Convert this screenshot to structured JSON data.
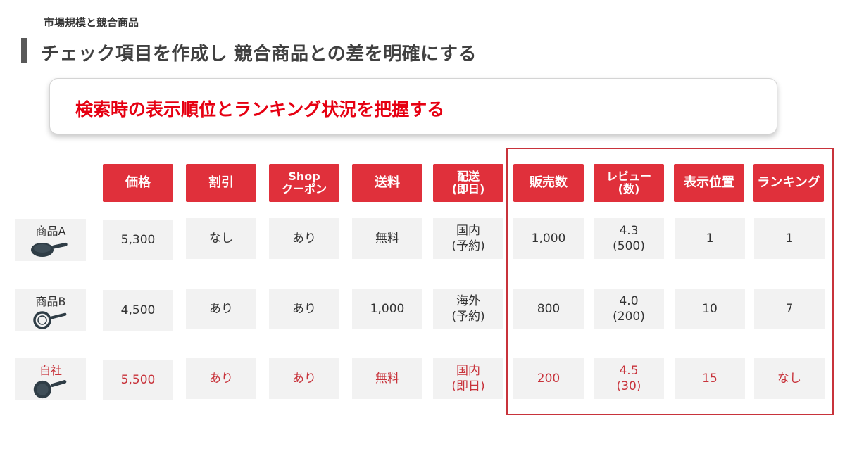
{
  "breadcrumb": "市場規模と競合商品",
  "title": "チェック項目を作成し 競合商品との差を明確にする",
  "callout": "検索時の表示順位とランキング状況を把握する",
  "headers": [
    "価格",
    "割引",
    "Shop\nクーポン",
    "送料",
    "配送\n(即日)",
    "販売数",
    "レビュー\n(数)",
    "表示位置",
    "ランキング"
  ],
  "rows": [
    {
      "label": "商品A",
      "icon": "frying-pan-icon",
      "values": [
        "5,300",
        "なし",
        "あり",
        "無料",
        "国内\n(予約)",
        "1,000",
        "4.3\n(500)",
        "1",
        "1"
      ]
    },
    {
      "label": "商品B",
      "icon": "frying-pan-outline-icon",
      "values": [
        "4,500",
        "あり",
        "あり",
        "1,000",
        "海外\n(予約)",
        "800",
        "4.0\n(200)",
        "10",
        "7"
      ]
    },
    {
      "label": "自社",
      "icon": "frying-pan-icon",
      "values": [
        "5,500",
        "あり",
        "あり",
        "無料",
        "国内\n(即日)",
        "200",
        "4.5\n(30)",
        "15",
        "なし"
      ]
    }
  ],
  "colors": {
    "accent_red": "#e0303b",
    "highlight_text": "#c8333b",
    "cell_bg": "#f2f2f2"
  }
}
